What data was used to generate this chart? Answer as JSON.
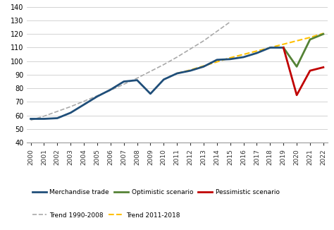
{
  "years_merchandise": [
    2000,
    2001,
    2002,
    2003,
    2004,
    2005,
    2006,
    2007,
    2008,
    2009,
    2010,
    2011,
    2012,
    2013,
    2014,
    2015,
    2016,
    2017,
    2018,
    2019
  ],
  "merchandise": [
    57.5,
    57.5,
    58.0,
    62.0,
    68.0,
    74.0,
    79.0,
    85.0,
    86.0,
    76.0,
    86.5,
    91.0,
    93.0,
    96.0,
    101.0,
    101.5,
    103.0,
    106.0,
    110.0,
    110.0
  ],
  "years_optimistic": [
    2019,
    2020,
    2021,
    2022
  ],
  "optimistic": [
    110.0,
    96.0,
    116.0,
    120.0
  ],
  "years_pessimistic": [
    2019,
    2020,
    2021,
    2022
  ],
  "pessimistic": [
    110.0,
    75.0,
    93.0,
    95.5
  ],
  "years_trend1990": [
    2000,
    2001,
    2002,
    2003,
    2004,
    2005,
    2006,
    2007,
    2008,
    2009,
    2010,
    2011,
    2012,
    2013,
    2014,
    2015
  ],
  "trend1990": [
    56.5,
    59.5,
    63.0,
    66.5,
    70.5,
    74.5,
    78.5,
    83.0,
    87.5,
    92.5,
    97.5,
    103.0,
    109.0,
    115.0,
    122.0,
    129.0
  ],
  "years_trend2011": [
    2011,
    2012,
    2013,
    2014,
    2015,
    2016,
    2017,
    2018,
    2019,
    2020,
    2021,
    2022
  ],
  "trend2011": [
    91.0,
    93.5,
    96.5,
    99.5,
    102.5,
    105.0,
    107.5,
    110.0,
    112.5,
    115.0,
    117.5,
    120.5
  ],
  "color_merchandise": "#1F4E79",
  "color_optimistic": "#548235",
  "color_pessimistic": "#C00000",
  "color_trend1990": "#AAAAAA",
  "color_trend2011": "#FFC000",
  "ylim": [
    40,
    140
  ],
  "yticks": [
    40,
    50,
    60,
    70,
    80,
    90,
    100,
    110,
    120,
    130,
    140
  ],
  "xlim": [
    2000,
    2022
  ],
  "xticks": [
    2000,
    2001,
    2002,
    2003,
    2004,
    2005,
    2006,
    2007,
    2008,
    2009,
    2010,
    2011,
    2012,
    2013,
    2014,
    2015,
    2016,
    2017,
    2018,
    2019,
    2020,
    2021,
    2022
  ]
}
